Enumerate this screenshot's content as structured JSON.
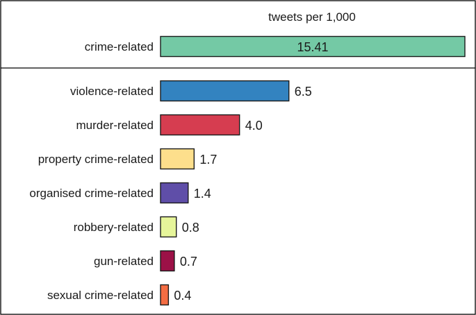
{
  "chart_data": {
    "type": "bar",
    "orientation": "horizontal",
    "title": "tweets per 1,000",
    "xlim": [
      0,
      15.41
    ],
    "grid": false,
    "legend": "none",
    "headline": {
      "category": "crime-related",
      "value": 15.41,
      "label": "15.41",
      "color": "#74c9a5"
    },
    "categories": [
      "violence-related",
      "murder-related",
      "property crime-related",
      "organised crime-related",
      "robbery-related",
      "gun-related",
      "sexual crime-related"
    ],
    "values": [
      6.5,
      4.0,
      1.7,
      1.4,
      0.8,
      0.7,
      0.4
    ],
    "value_labels": [
      "6.5",
      "4.0",
      "1.7",
      "1.4",
      "0.8",
      "0.7",
      "0.4"
    ],
    "colors": [
      "#3383c0",
      "#d63d50",
      "#fddf8c",
      "#5f4ea8",
      "#e6f59a",
      "#9c1147",
      "#f46d43"
    ]
  }
}
